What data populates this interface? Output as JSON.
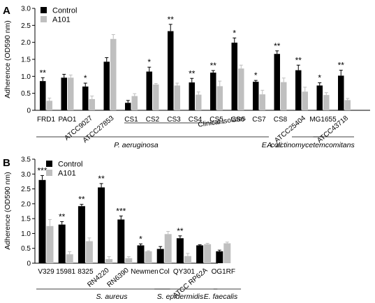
{
  "colors": {
    "control": "#000000",
    "a101": "#bfbfbf",
    "axis": "#000000"
  },
  "chart_data": [
    {
      "panel_label": "A",
      "type": "bar",
      "ylabel": "Adherence (OD590 nm)",
      "ylim": [
        0,
        3.0
      ],
      "yticks": [
        "0",
        "0.5",
        "1.0",
        "1.5",
        "2.0",
        "2.5",
        "3.0"
      ],
      "grid": false,
      "legend_position": "top-left",
      "categories": [
        "FRD1",
        "PAO1",
        "ATCC9027",
        "ATCC27853",
        "CS1",
        "CS2",
        "CS3",
        "CS4",
        "CS5",
        "CS6",
        "CS7",
        "CS8",
        "ATCC25404",
        "MG1655",
        "ATCC43718"
      ],
      "series": [
        {
          "name": "Control",
          "values": [
            0.86,
            0.96,
            0.7,
            1.43,
            0.22,
            1.14,
            2.33,
            0.82,
            1.11,
            1.99,
            0.84,
            1.66,
            1.18,
            0.73,
            1.02
          ],
          "errors": [
            0.1,
            0.1,
            0.1,
            0.12,
            0.07,
            0.13,
            0.2,
            0.12,
            0.06,
            0.14,
            0.04,
            0.09,
            0.15,
            0.08,
            0.16
          ]
        },
        {
          "name": "A101",
          "values": [
            0.28,
            0.96,
            0.33,
            2.1,
            0.42,
            0.76,
            0.73,
            0.46,
            0.71,
            1.23,
            0.47,
            0.83,
            0.55,
            0.45,
            0.3
          ],
          "errors": [
            0.08,
            0.08,
            0.09,
            0.13,
            0.07,
            0.03,
            0.07,
            0.08,
            0.15,
            0.1,
            0.12,
            0.12,
            0.13,
            0.07,
            0.05
          ]
        }
      ],
      "significance": [
        "**",
        "",
        "*",
        "",
        "",
        "*",
        "**",
        "**",
        "**",
        "*",
        "*",
        "**",
        "**",
        "*",
        "**"
      ],
      "bracket_labels": [
        "Clinical isolates"
      ],
      "groups": [
        "P. aeruginosa",
        "E. coli",
        "A. actinomycetemcomitans"
      ]
    },
    {
      "panel_label": "B",
      "type": "bar",
      "ylabel": "Adherence (OD590 nm)",
      "ylim": [
        0,
        3.5
      ],
      "yticks": [
        "0",
        "0.5",
        "1.0",
        "1.5",
        "2.0",
        "2.5",
        "3.0",
        "3.5"
      ],
      "grid": false,
      "legend_position": "top-left",
      "categories": [
        "V329",
        "15981",
        "8325",
        "RN4220",
        "RN6390",
        "Newmen",
        "Col",
        "QY301",
        "ATCC RP62A",
        "OG1RF"
      ],
      "series": [
        {
          "name": "Control",
          "values": [
            2.8,
            1.3,
            1.92,
            2.55,
            1.47,
            0.6,
            0.48,
            0.84,
            0.6,
            0.4
          ],
          "errors": [
            0.15,
            0.1,
            0.06,
            0.13,
            0.12,
            0.05,
            0.08,
            0.08,
            0.02,
            0.04
          ]
        },
        {
          "name": "A101",
          "values": [
            1.25,
            0.3,
            0.74,
            0.14,
            0.17,
            0.4,
            0.98,
            0.24,
            0.64,
            0.67
          ],
          "errors": [
            0.22,
            0.09,
            0.11,
            0.08,
            0.05,
            0.02,
            0.09,
            0.09,
            0.03,
            0.04
          ]
        }
      ],
      "significance": [
        "***",
        "**",
        "**",
        "**",
        "***",
        "*",
        "",
        "**",
        "",
        ""
      ],
      "groups": [
        "S. aureus",
        "S. epidermidis",
        "E. faecalis"
      ]
    }
  ]
}
